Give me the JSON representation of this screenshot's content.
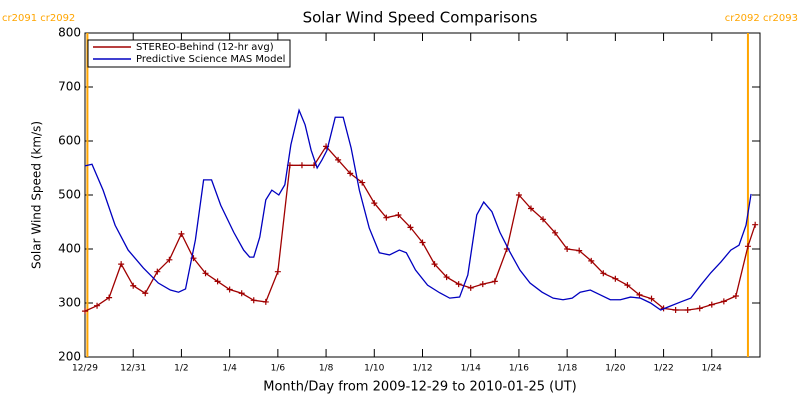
{
  "chart_data": {
    "type": "line",
    "title": "Solar Wind Speed Comparisons",
    "xlabel": "Month/Day from 2009-12-29 to 2010-01-25 (UT)",
    "ylabel": "Solar Wind Speed (km/s)",
    "xlim": [
      0,
      28
    ],
    "ylim": [
      200,
      800
    ],
    "yticks": [
      200,
      300,
      400,
      500,
      600,
      700,
      800
    ],
    "xticks": [
      {
        "value": 0,
        "label": "12/29"
      },
      {
        "value": 2,
        "label": "12/31"
      },
      {
        "value": 4,
        "label": "1/2"
      },
      {
        "value": 6,
        "label": "1/4"
      },
      {
        "value": 8,
        "label": "1/6"
      },
      {
        "value": 10,
        "label": "1/8"
      },
      {
        "value": 12,
        "label": "1/10"
      },
      {
        "value": 14,
        "label": "1/12"
      },
      {
        "value": 16,
        "label": "1/14"
      },
      {
        "value": 18,
        "label": "1/16"
      },
      {
        "value": 20,
        "label": "1/18"
      },
      {
        "value": 22,
        "label": "1/20"
      },
      {
        "value": 24,
        "label": "1/22"
      },
      {
        "value": 26,
        "label": "1/24"
      }
    ],
    "legend": "upper left",
    "annotations": [
      {
        "x": 0.1,
        "label": "cr2091 cr2092",
        "color": "#ffa500"
      },
      {
        "x": 27.5,
        "label": "cr2092 cr2093",
        "color": "#ffa500"
      }
    ],
    "series": [
      {
        "name": "STEREO-Behind (12-hr avg)",
        "color": "#a00000",
        "marker": "+",
        "x": [
          0,
          0.5,
          1,
          1.5,
          2,
          2.5,
          3,
          3.5,
          4,
          4.5,
          5,
          5.5,
          6,
          6.5,
          7,
          7.5,
          8,
          8.5,
          9,
          9.5,
          10,
          10.5,
          11,
          11.5,
          12,
          12.5,
          13,
          13.5,
          14,
          14.5,
          15,
          15.5,
          16,
          16.5,
          17,
          17.5,
          18,
          18.5,
          19,
          19.5,
          20,
          20.5,
          21,
          21.5,
          22,
          22.5,
          23,
          23.5,
          24,
          24.5,
          25,
          25.5,
          26,
          26.5,
          27,
          27.5,
          27.8
        ],
        "values": [
          285,
          295,
          310,
          372,
          332,
          318,
          358,
          380,
          428,
          383,
          355,
          340,
          325,
          318,
          305,
          302,
          358,
          555,
          555,
          555,
          590,
          565,
          540,
          523,
          485,
          458,
          463,
          440,
          412,
          372,
          348,
          335,
          328,
          335,
          340,
          400,
          500,
          475,
          455,
          430,
          400,
          397,
          378,
          355,
          345,
          333,
          315,
          308,
          290,
          287,
          287,
          290,
          297,
          303,
          313,
          405,
          445
        ]
      },
      {
        "name": "Predictive Science MAS Model",
        "color": "#0000c0",
        "x": [
          0,
          0.29,
          0.75,
          1.25,
          1.79,
          2.42,
          3.04,
          3.54,
          3.88,
          4.17,
          4.58,
          4.92,
          5.25,
          5.63,
          6.17,
          6.58,
          6.83,
          7.0,
          7.25,
          7.5,
          7.75,
          8.04,
          8.29,
          8.54,
          8.88,
          9.13,
          9.38,
          9.63,
          9.83,
          10.04,
          10.38,
          10.71,
          11.04,
          11.38,
          11.79,
          12.21,
          12.63,
          13.04,
          13.33,
          13.71,
          14.21,
          14.71,
          15.13,
          15.54,
          15.88,
          16.25,
          16.54,
          16.88,
          17.21,
          17.63,
          18.04,
          18.46,
          18.96,
          19.42,
          19.83,
          20.21,
          20.54,
          20.96,
          21.38,
          21.79,
          22.21,
          22.63,
          23.04,
          23.46,
          23.88,
          24.21,
          24.71,
          25.13,
          25.54,
          25.96,
          26.38,
          26.79,
          27.13,
          27.42,
          27.63
        ],
        "values": [
          554,
          557,
          509,
          444,
          398,
          365,
          337,
          324,
          320,
          326,
          417,
          528,
          528,
          481,
          431,
          398,
          385,
          385,
          422,
          491,
          509,
          500,
          519,
          593,
          657,
          630,
          583,
          550,
          565,
          583,
          644,
          644,
          587,
          509,
          439,
          393,
          389,
          398,
          393,
          361,
          333,
          319,
          309,
          311,
          352,
          463,
          487,
          469,
          431,
          394,
          361,
          337,
          320,
          309,
          306,
          309,
          320,
          324,
          315,
          306,
          306,
          311,
          309,
          300,
          287,
          293,
          302,
          309,
          333,
          356,
          376,
          398,
          407,
          444,
          502
        ]
      }
    ]
  }
}
